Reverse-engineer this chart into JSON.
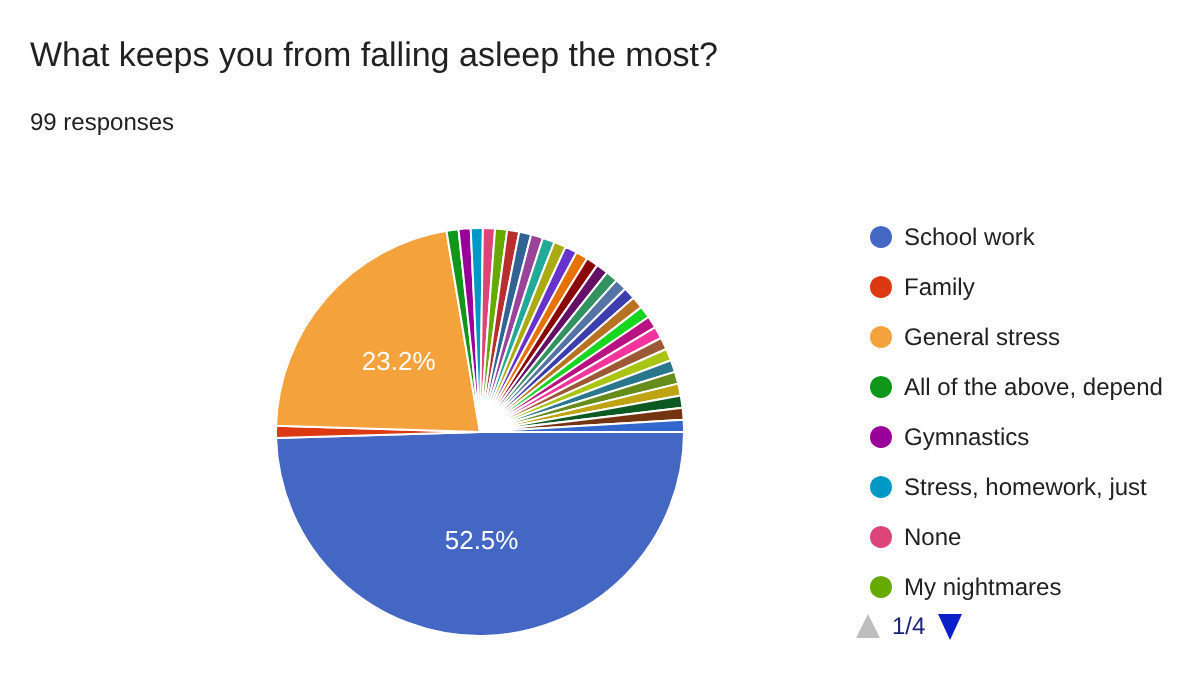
{
  "chart_data": {
    "type": "pie",
    "title": "What keeps you from falling asleep the most?",
    "subtitle": "99 responses",
    "categories": [
      "School work",
      "Family",
      "General stress",
      "All of the above, depend",
      "Gymnastics",
      "Stress, homework, just",
      "None",
      "My nightmares",
      null,
      null,
      null,
      null,
      null,
      null,
      null,
      null,
      null,
      null,
      null,
      null,
      null,
      null,
      null,
      null,
      null,
      null,
      null,
      null,
      null,
      null,
      null,
      null
    ],
    "values": [
      52.5,
      1.01,
      23.2,
      1.01,
      1.01,
      1.01,
      1.01,
      1.01,
      1.01,
      1.01,
      1.01,
      1.01,
      1.01,
      1.01,
      1.01,
      1.01,
      1.01,
      1.01,
      1.01,
      1.01,
      1.01,
      1.01,
      1.01,
      1.01,
      1.01,
      1.01,
      1.01,
      1.01,
      1.01,
      1.01,
      1.01,
      1.01
    ],
    "colors": [
      "#4467c4",
      "#dc3912",
      "#f4a23b",
      "#109618",
      "#990099",
      "#0099c6",
      "#dd4477",
      "#66aa00",
      "#b82e2e",
      "#316395",
      "#994499",
      "#22aa99",
      "#aaaa11",
      "#6633cc",
      "#e67300",
      "#8b0707",
      "#651067",
      "#329262",
      "#5574a6",
      "#3b3eac",
      "#b77322",
      "#16d620",
      "#b91383",
      "#f4359e",
      "#9c5935",
      "#a9c413",
      "#2a778d",
      "#668d1c",
      "#bea413",
      "#0c5922",
      "#743411",
      "#3366cc"
    ],
    "value_labels": [
      "52.5%",
      null,
      "23.2%",
      null,
      null,
      null,
      null,
      null,
      null,
      null,
      null,
      null,
      null,
      null,
      null,
      null,
      null,
      null,
      null,
      null,
      null,
      null,
      null,
      null,
      null,
      null,
      null,
      null,
      null,
      null,
      null,
      null
    ],
    "legend": "right",
    "annotations": [
      "1/4"
    ]
  }
}
